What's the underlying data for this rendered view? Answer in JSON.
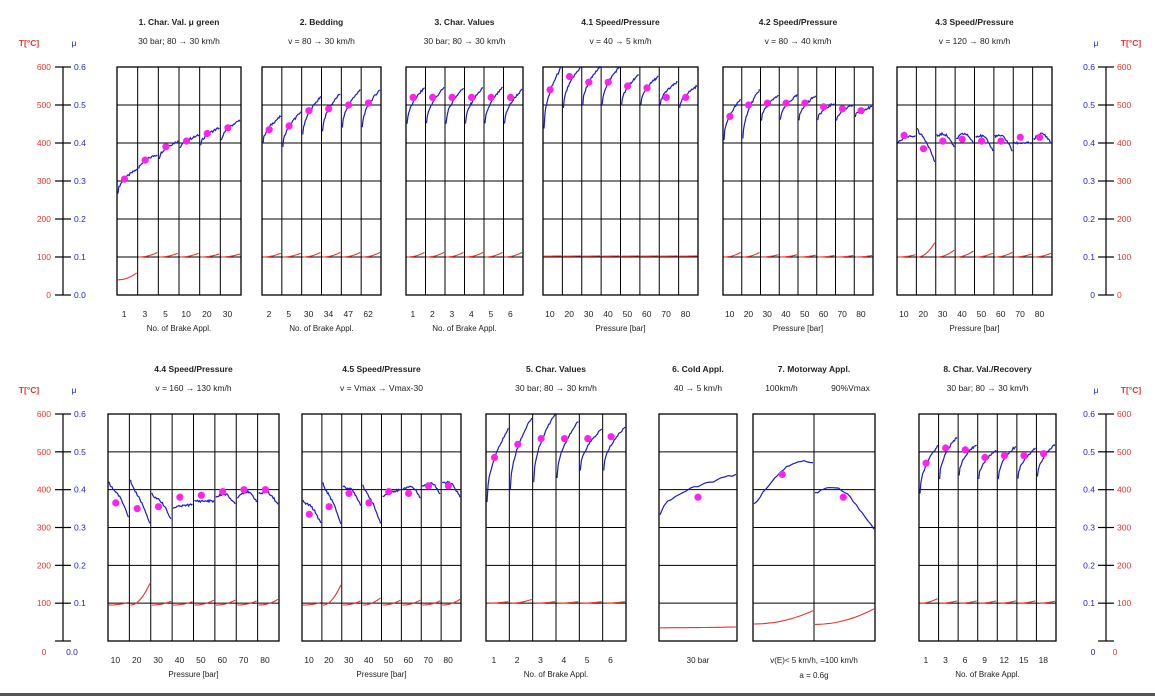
{
  "colors": {
    "mu": "#1a1ad0",
    "temp": "#e8342c",
    "marker": "#ff22ee",
    "grid": "#000000",
    "axis_label_t": "#e8342c",
    "axis_label_mu": "#2222cc"
  },
  "axes": {
    "temp_label": "T[°C]",
    "mu_label": "μ",
    "temp_ticks": [
      0,
      100,
      200,
      300,
      400,
      500,
      600
    ],
    "mu_ticks": [
      "0.0",
      "0.1",
      "0.2",
      "0.3",
      "0.4",
      "0.5",
      "0.6"
    ],
    "mu_ticks_right": [
      "0",
      "0.1",
      "0.2",
      "0.3",
      "0.4",
      "0.5",
      "0.6"
    ],
    "bottom_left_zero": [
      "0",
      "0.0"
    ],
    "bottom_right_zero": [
      "0",
      "0"
    ]
  },
  "chart_data": [
    {
      "type": "line",
      "id": "p1",
      "title": "1. Char. Val. μ green",
      "subtitle": "30 bar; 80 → 30 km/h",
      "xlabel": "No. of Brake Appl.",
      "tick_labels": [
        "1",
        "3",
        "5",
        "10",
        "20",
        "30"
      ],
      "ylim_mu": [
        0,
        0.6
      ],
      "ylim_temp": [
        0,
        600
      ],
      "mu_points": [
        0.305,
        0.355,
        0.39,
        0.405,
        0.425,
        0.44
      ],
      "mu_start": [
        0.27,
        0.33,
        0.36,
        0.385,
        0.395,
        0.405
      ],
      "mu_end": [
        0.33,
        0.37,
        0.405,
        0.42,
        0.44,
        0.46
      ],
      "temp_start": [
        40,
        100,
        100,
        100,
        100,
        100
      ],
      "temp_end": [
        58,
        112,
        110,
        110,
        108,
        108
      ]
    },
    {
      "type": "line",
      "id": "p2",
      "title": "2. Bedding",
      "subtitle": "v = 80 → 30 km/h",
      "xlabel": "No. of Brake Appl.",
      "tick_labels": [
        "2",
        "5",
        "30",
        "34",
        "47",
        "62"
      ],
      "ylim_mu": [
        0,
        0.6
      ],
      "ylim_temp": [
        0,
        600
      ],
      "mu_points": [
        0.435,
        0.445,
        0.485,
        0.49,
        0.5,
        0.505
      ],
      "mu_start": [
        0.4,
        0.39,
        0.42,
        0.43,
        0.44,
        0.44
      ],
      "mu_end": [
        0.47,
        0.48,
        0.52,
        0.53,
        0.54,
        0.54
      ],
      "temp_start": [
        100,
        100,
        100,
        100,
        100,
        100
      ],
      "temp_end": [
        110,
        110,
        112,
        112,
        112,
        112
      ]
    },
    {
      "type": "line",
      "id": "p3",
      "title": "3. Char. Values",
      "subtitle": "30 bar; 80 → 30 km/h",
      "xlabel": "No. of Brake Appl.",
      "tick_labels": [
        "1",
        "2",
        "3",
        "4",
        "5",
        "6"
      ],
      "ylim_mu": [
        0,
        0.6
      ],
      "ylim_temp": [
        0,
        600
      ],
      "mu_points": [
        0.52,
        0.52,
        0.52,
        0.52,
        0.52,
        0.52
      ],
      "mu_start": [
        0.45,
        0.45,
        0.45,
        0.45,
        0.45,
        0.45
      ],
      "mu_end": [
        0.545,
        0.545,
        0.545,
        0.545,
        0.545,
        0.54
      ],
      "temp_start": [
        100,
        100,
        100,
        100,
        100,
        100
      ],
      "temp_end": [
        112,
        112,
        112,
        112,
        112,
        112
      ]
    },
    {
      "type": "line",
      "id": "p41",
      "title": "4.1 Speed/Pressure",
      "subtitle": "v = 40 → 5 km/h",
      "xlabel": "Pressure [bar]",
      "tick_labels": [
        "10",
        "20",
        "30",
        "40",
        "50",
        "60",
        "70",
        "80"
      ],
      "ylim_mu": [
        0,
        0.6
      ],
      "ylim_temp": [
        0,
        600
      ],
      "mu_points": [
        0.54,
        0.575,
        0.56,
        0.56,
        0.55,
        0.545,
        0.52,
        0.52
      ],
      "mu_start": [
        0.44,
        0.49,
        0.5,
        0.5,
        0.5,
        0.5,
        0.5,
        0.49
      ],
      "mu_end": [
        0.6,
        0.6,
        0.6,
        0.6,
        0.58,
        0.575,
        0.56,
        0.55
      ],
      "temp_start": [
        102,
        102,
        102,
        102,
        102,
        102,
        102,
        102
      ],
      "temp_end": [
        103,
        103,
        103,
        103,
        103,
        103,
        103,
        103
      ]
    },
    {
      "type": "line",
      "id": "p42",
      "title": "4.2 Speed/Pressure",
      "subtitle": "v = 80 → 40 km/h",
      "xlabel": "Pressure [bar]",
      "tick_labels": [
        "10",
        "20",
        "30",
        "40",
        "50",
        "60",
        "70",
        "80"
      ],
      "ylim_mu": [
        0,
        0.6
      ],
      "ylim_temp": [
        0,
        600
      ],
      "mu_points": [
        0.47,
        0.5,
        0.505,
        0.505,
        0.505,
        0.495,
        0.49,
        0.485
      ],
      "mu_start": [
        0.41,
        0.41,
        0.46,
        0.46,
        0.46,
        0.46,
        0.46,
        0.47
      ],
      "mu_end": [
        0.515,
        0.54,
        0.525,
        0.525,
        0.525,
        0.505,
        0.5,
        0.495
      ],
      "temp_start": [
        100,
        100,
        100,
        100,
        100,
        100,
        100,
        100
      ],
      "temp_end": [
        112,
        112,
        106,
        106,
        105,
        104,
        104,
        104
      ]
    },
    {
      "type": "line",
      "id": "p43",
      "title": "4.3 Speed/Pressure",
      "subtitle": "v = 120 → 80 km/h",
      "xlabel": "Pressure [bar]",
      "tick_labels": [
        "10",
        "20",
        "30",
        "40",
        "50",
        "60",
        "70",
        "80"
      ],
      "ylim_mu": [
        0,
        0.6
      ],
      "ylim_temp": [
        0,
        600
      ],
      "mu_points": [
        0.42,
        0.385,
        0.405,
        0.41,
        0.405,
        0.405,
        0.415,
        0.415
      ],
      "mu_start": [
        0.4,
        0.44,
        0.42,
        0.41,
        0.42,
        0.42,
        0.4,
        0.41
      ],
      "mu_end": [
        0.42,
        0.35,
        0.39,
        0.4,
        0.38,
        0.38,
        0.4,
        0.4
      ],
      "temp_start": [
        100,
        100,
        100,
        100,
        100,
        100,
        100,
        100
      ],
      "temp_end": [
        106,
        138,
        118,
        116,
        110,
        112,
        108,
        110
      ]
    },
    {
      "type": "line",
      "id": "p44",
      "title": "4.4 Speed/Pressure",
      "subtitle": "v = 160 → 130 km/h",
      "xlabel": "Pressure [bar]",
      "tick_labels": [
        "10",
        "20",
        "30",
        "40",
        "50",
        "60",
        "70",
        "80"
      ],
      "ylim_mu": [
        0,
        0.6
      ],
      "ylim_temp": [
        0,
        600
      ],
      "mu_points": [
        0.365,
        0.35,
        0.355,
        0.38,
        0.385,
        0.395,
        0.4,
        0.4
      ],
      "mu_start": [
        0.42,
        0.425,
        0.39,
        0.35,
        0.37,
        0.38,
        0.38,
        0.39
      ],
      "mu_end": [
        0.33,
        0.31,
        0.32,
        0.36,
        0.37,
        0.36,
        0.37,
        0.36
      ],
      "temp_start": [
        95,
        95,
        95,
        95,
        95,
        95,
        95,
        95
      ],
      "temp_end": [
        102,
        152,
        105,
        104,
        108,
        108,
        106,
        110
      ]
    },
    {
      "type": "line",
      "id": "p45",
      "title": "4.5 Speed/Pressure",
      "subtitle": "v = Vmax → Vmax-30",
      "xlabel": "Pressure [bar]",
      "tick_labels": [
        "10",
        "20",
        "30",
        "40",
        "50",
        "60",
        "70",
        "80"
      ],
      "ylim_mu": [
        0,
        0.6
      ],
      "ylim_temp": [
        0,
        600
      ],
      "mu_points": [
        0.335,
        0.355,
        0.39,
        0.365,
        0.395,
        0.39,
        0.41,
        0.41
      ],
      "mu_start": [
        0.37,
        0.42,
        0.41,
        0.415,
        0.38,
        0.4,
        0.41,
        0.42
      ],
      "mu_end": [
        0.31,
        0.31,
        0.36,
        0.31,
        0.4,
        0.38,
        0.39,
        0.38
      ],
      "temp_start": [
        95,
        95,
        95,
        95,
        95,
        95,
        95,
        95
      ],
      "temp_end": [
        102,
        148,
        106,
        114,
        108,
        108,
        106,
        110
      ]
    },
    {
      "type": "line",
      "id": "p5",
      "title": "5. Char. Values",
      "subtitle": "30 bar; 80 → 30 km/h",
      "xlabel": "No. of Brake Appl.",
      "tick_labels": [
        "1",
        "2",
        "3",
        "4",
        "5",
        "6"
      ],
      "ylim_mu": [
        0,
        0.6
      ],
      "ylim_temp": [
        0,
        600
      ],
      "mu_points": [
        0.485,
        0.52,
        0.535,
        0.535,
        0.535,
        0.54
      ],
      "mu_start": [
        0.37,
        0.4,
        0.42,
        0.43,
        0.45,
        0.45
      ],
      "mu_end": [
        0.56,
        0.59,
        0.6,
        0.58,
        0.56,
        0.565
      ],
      "temp_start": [
        100,
        100,
        100,
        100,
        100,
        100
      ],
      "temp_end": [
        104,
        110,
        104,
        104,
        104,
        104
      ]
    },
    {
      "type": "line",
      "id": "p6",
      "title": "6. Cold Appl.",
      "subtitle": "40 → 5 km/h",
      "xlabel": "30 bar",
      "tick_labels": [],
      "ylim_mu": [
        0,
        0.6
      ],
      "ylim_temp": [
        0,
        600
      ],
      "mu_points": [
        0.38
      ],
      "mu_start": [
        0.335
      ],
      "mu_end": [
        0.44
      ],
      "temp_start": [
        35
      ],
      "temp_end": [
        37
      ]
    },
    {
      "type": "line",
      "id": "p7",
      "title": "7. Motorway Appl.",
      "subtitle": [
        "100km/h",
        "90%Vmax"
      ],
      "xlabel": [
        "v(E)< 5 km/h,     =100 km/h",
        "a = 0.6g"
      ],
      "tick_labels": [],
      "ylim_mu": [
        0,
        0.6
      ],
      "ylim_temp": [
        0,
        600
      ],
      "mu_points": [
        0.44,
        0.38
      ],
      "mu_start": [
        0.36,
        0.39
      ],
      "mu_end": [
        0.47,
        0.32
      ],
      "temp_start": [
        45,
        44
      ],
      "temp_end": [
        80,
        85
      ]
    },
    {
      "type": "line",
      "id": "p8",
      "title": "8. Char. Val./Recovery",
      "subtitle": "30 bar; 80 → 30 km/h",
      "xlabel": "No. of Brake Appl.",
      "tick_labels": [
        "1",
        "3",
        "6",
        "9",
        "12",
        "15",
        "18"
      ],
      "ylim_mu": [
        0,
        0.6
      ],
      "ylim_temp": [
        0,
        600
      ],
      "mu_points": [
        0.47,
        0.51,
        0.505,
        0.485,
        0.49,
        0.49,
        0.495
      ],
      "mu_start": [
        0.39,
        0.43,
        0.44,
        0.43,
        0.43,
        0.43,
        0.435
      ],
      "mu_end": [
        0.515,
        0.54,
        0.52,
        0.505,
        0.515,
        0.51,
        0.52
      ],
      "temp_start": [
        100,
        100,
        100,
        100,
        100,
        100,
        100
      ],
      "temp_end": [
        112,
        106,
        106,
        106,
        106,
        106,
        105
      ]
    }
  ]
}
